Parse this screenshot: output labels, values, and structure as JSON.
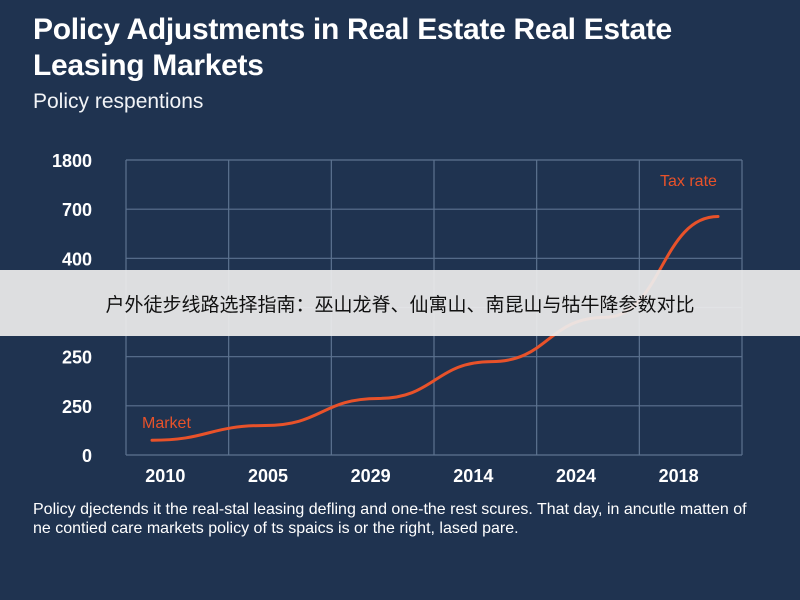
{
  "chart_data": {
    "type": "line",
    "title": "Policy Adjustments in Real Estate Real Estate Leasing Markets",
    "subtitle": "Policy respentions",
    "categories": [
      "2010",
      "2005",
      "2029",
      "2014",
      "2024",
      "2018"
    ],
    "y_tick_labels": [
      "1800",
      "700",
      "400",
      "",
      "250",
      "250",
      "0"
    ],
    "series": [
      {
        "name": "Market",
        "end_label": "Tax rate",
        "color": "#e8522a",
        "x": [
          2010,
          2005,
          2029,
          2014,
          2024,
          2018
        ],
        "values": [
          30,
          60,
          115,
          190,
          280,
          485
        ]
      }
    ],
    "ylim": [
      0,
      600
    ],
    "grid": true,
    "caption": "Policy djectends it the real-stal leasing defling and one-the rest scures. That day, in ancutle matten of ne contied care markets policy of ts spaics is or the right, lased pare."
  },
  "banner": {
    "text": "户外徒步线路选择指南：巫山龙脊、仙寓山、南昆山与牯牛降参数对比"
  }
}
